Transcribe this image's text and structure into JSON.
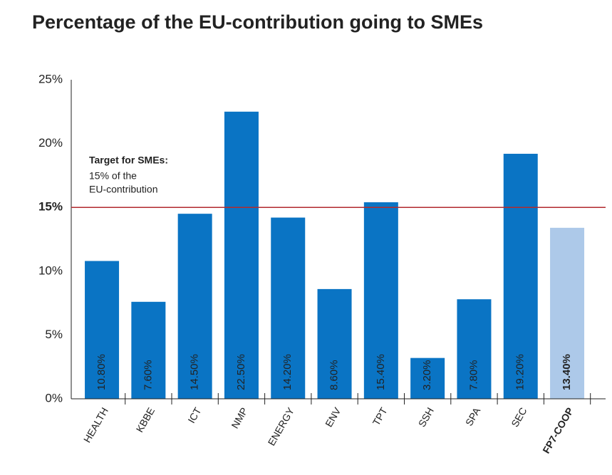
{
  "chart_data": {
    "type": "bar",
    "title": "Percentage of the EU-contribution going to SMEs",
    "categories": [
      "HEALTH",
      "KBBE",
      "ICT",
      "NMP",
      "ENERGY",
      "ENV",
      "TPT",
      "SSH",
      "SPA",
      "SEC",
      "FP7-COOP"
    ],
    "values": [
      10.8,
      7.6,
      14.5,
      22.5,
      14.2,
      8.6,
      15.4,
      3.2,
      7.8,
      19.2,
      13.4
    ],
    "value_labels": [
      "10.80%",
      "7.60%",
      "14.50%",
      "22.50%",
      "14.20%",
      "8.60%",
      "15.40%",
      "3.20%",
      "7.80%",
      "19.20%",
      "13.40%"
    ],
    "colors": [
      "#0a74c4",
      "#0a74c4",
      "#0a74c4",
      "#0a74c4",
      "#0a74c4",
      "#0a74c4",
      "#0a74c4",
      "#0a74c4",
      "#0a74c4",
      "#0a74c4",
      "#adc9e9"
    ],
    "emphasis": [
      false,
      false,
      false,
      false,
      false,
      false,
      false,
      false,
      false,
      false,
      true
    ],
    "ylim": [
      0,
      25
    ],
    "yticks": [
      {
        "value": 0,
        "label": "0%"
      },
      {
        "value": 5,
        "label": "5%"
      },
      {
        "value": 10,
        "label": "10%"
      },
      {
        "value": 15,
        "label": "15%"
      },
      {
        "value": 20,
        "label": "20%"
      },
      {
        "value": 25,
        "label": "25%"
      }
    ],
    "reference_line": {
      "value": 15,
      "color": "#b22a2e"
    },
    "annotation": {
      "title": "Target for SMEs:",
      "lines": [
        "15% of the",
        "EU-contribution"
      ]
    }
  }
}
